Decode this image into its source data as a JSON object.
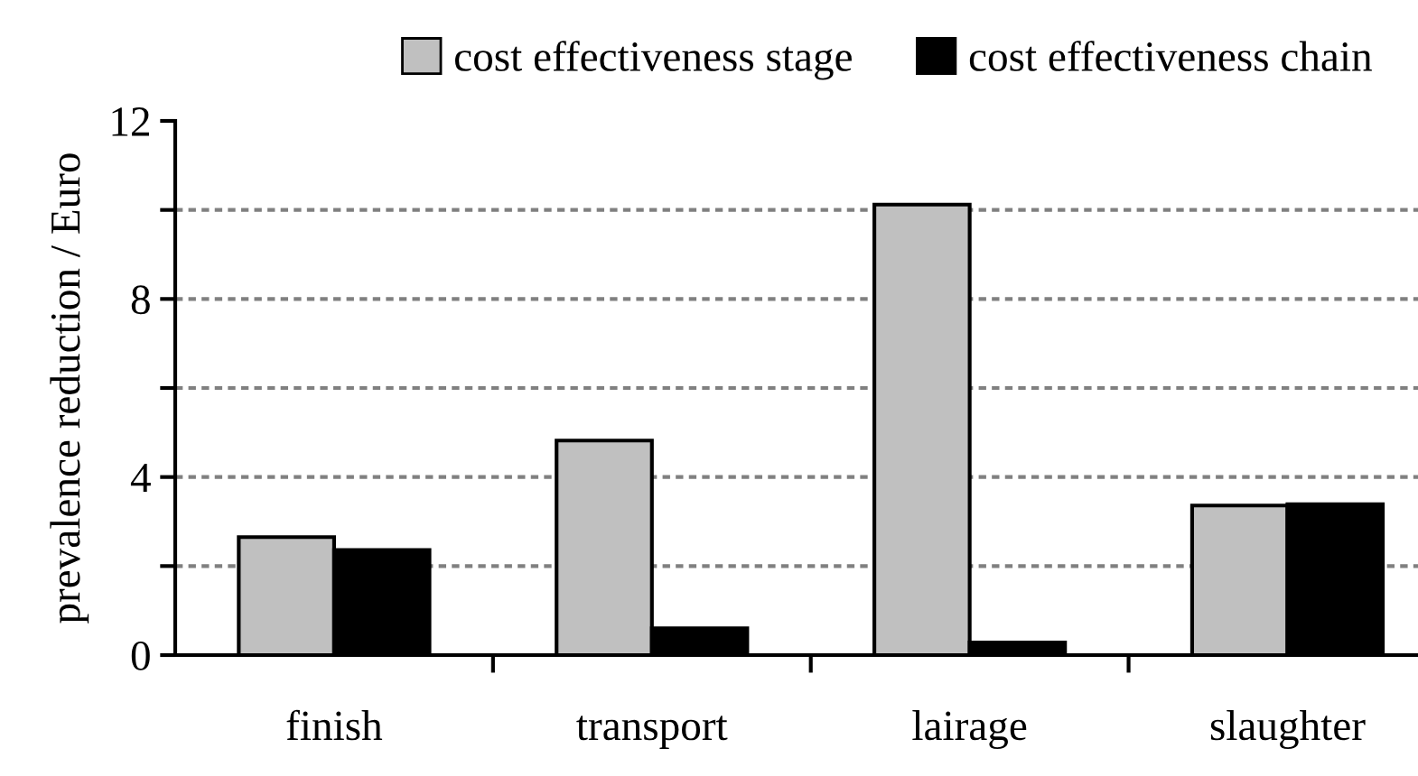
{
  "chart_data": {
    "type": "bar",
    "ylabel": "prevalence reduction / Euro",
    "categories": [
      "finish",
      "transport",
      "lairage",
      "slaughter"
    ],
    "series": [
      {
        "name": "cost effectiveness stage",
        "color": "#c0c0c0",
        "values": [
          2.65,
          4.82,
          10.12,
          3.36
        ]
      },
      {
        "name": "cost effectiveness chain",
        "color": "#000000",
        "values": [
          2.36,
          0.6,
          0.28,
          3.39
        ]
      }
    ],
    "ylim": [
      0,
      12
    ],
    "yticks": [
      0,
      {
        "value": 2,
        "label": null
      },
      4,
      {
        "value": 6,
        "label": null
      },
      8,
      {
        "value": 10,
        "label": null
      },
      12
    ],
    "grid": "y",
    "legend": "top"
  }
}
